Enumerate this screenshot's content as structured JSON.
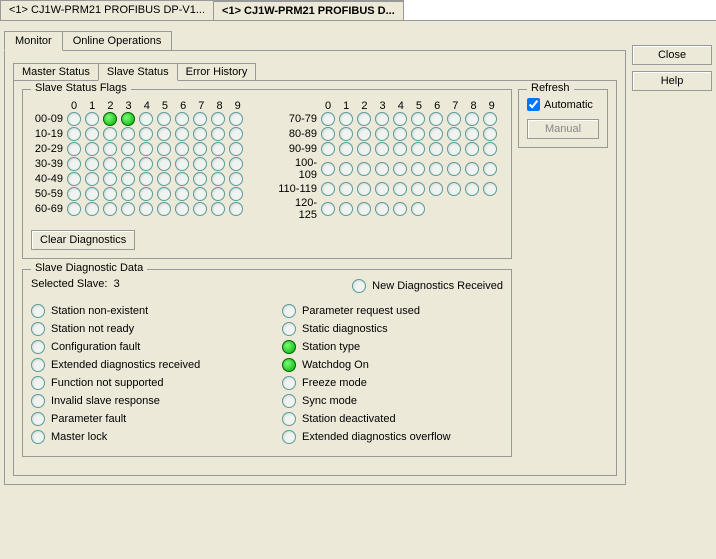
{
  "windowTabs": [
    {
      "label": "<1> CJ1W-PRM21 PROFIBUS DP-V1...",
      "active": false
    },
    {
      "label": "<1> CJ1W-PRM21 PROFIBUS D...",
      "active": true
    }
  ],
  "buttons": {
    "close": "Close",
    "help": "Help",
    "manual": "Manual",
    "clear": "Clear Diagnostics"
  },
  "mainTabs": [
    {
      "label": "Monitor",
      "active": true
    },
    {
      "label": "Online Operations",
      "active": false
    }
  ],
  "subTabs": [
    {
      "label": "Master Status",
      "active": false
    },
    {
      "label": "Slave Status",
      "active": true
    },
    {
      "label": "Error History",
      "active": false
    }
  ],
  "flagsTitle": "Slave Status Flags",
  "colHeaders": [
    "0",
    "1",
    "2",
    "3",
    "4",
    "5",
    "6",
    "7",
    "8",
    "9"
  ],
  "leftRows": [
    "00-09",
    "10-19",
    "20-29",
    "30-39",
    "40-49",
    "50-59",
    "60-69"
  ],
  "rightRows": [
    "70-79",
    "80-89",
    "90-99",
    "100-109",
    "110-119",
    "120-125"
  ],
  "activeFlags": [
    2,
    3
  ],
  "rightLastCount": 6,
  "diagTitle": "Slave Diagnostic Data",
  "selectedSlaveLabel": "Selected Slave:",
  "selectedSlaveValue": "3",
  "diagLeft": [
    {
      "label": "Station non-existent",
      "on": false
    },
    {
      "label": "Station not ready",
      "on": false
    },
    {
      "label": "Configuration fault",
      "on": false
    },
    {
      "label": "Extended diagnostics received",
      "on": false
    },
    {
      "label": "Function not supported",
      "on": false
    },
    {
      "label": "Invalid slave response",
      "on": false
    },
    {
      "label": "Parameter fault",
      "on": false
    },
    {
      "label": "Master lock",
      "on": false
    }
  ],
  "diagRightTop": {
    "label": "New Diagnostics Received",
    "on": false
  },
  "diagRight": [
    {
      "label": "Parameter request used",
      "on": false
    },
    {
      "label": "Static diagnostics",
      "on": false
    },
    {
      "label": "Station type",
      "on": true
    },
    {
      "label": "Watchdog On",
      "on": true
    },
    {
      "label": "Freeze mode",
      "on": false
    },
    {
      "label": "Sync mode",
      "on": false
    },
    {
      "label": "Station deactivated",
      "on": false
    },
    {
      "label": "Extended diagnostics overflow",
      "on": false
    }
  ],
  "refreshTitle": "Refresh",
  "automaticLabel": "Automatic",
  "automaticChecked": true
}
